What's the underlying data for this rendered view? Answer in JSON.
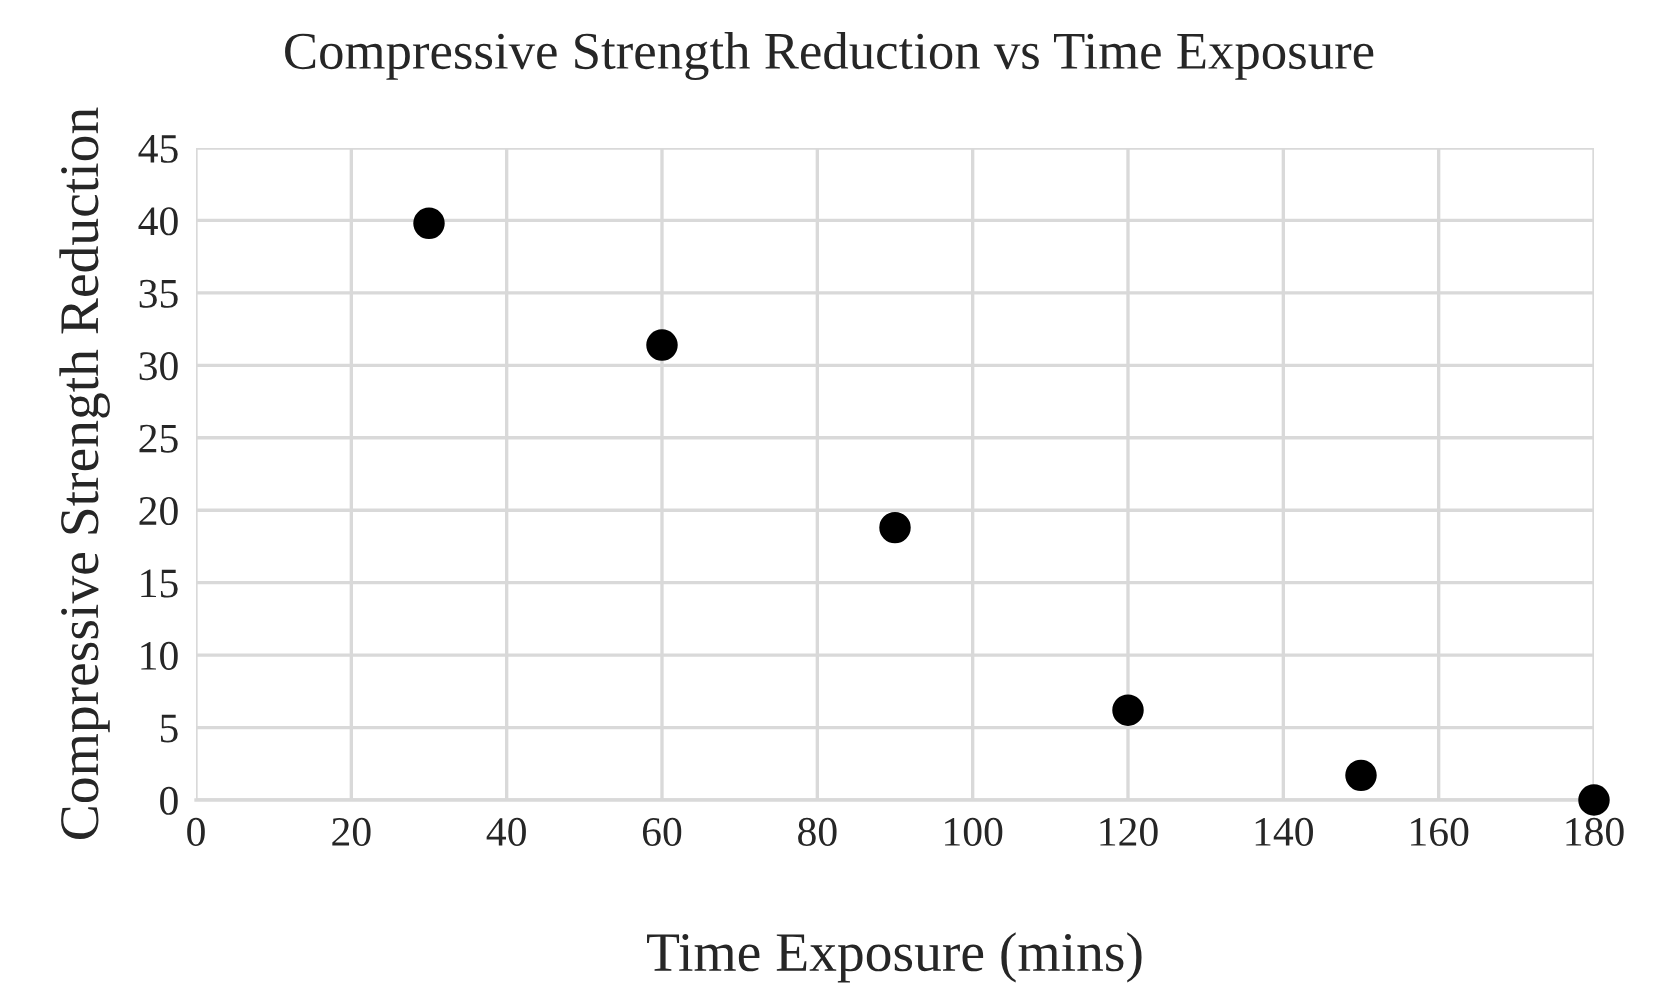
{
  "chart_data": {
    "type": "scatter",
    "title": "Compressive Strength Reduction vs Time Exposure",
    "xlabel": "Time Exposure (mins)",
    "ylabel": "Compressive Strength Reduction",
    "x": [
      30,
      60,
      90,
      120,
      150,
      180
    ],
    "series": [
      {
        "color": "#000000",
        "values": [
          39.8,
          31.4,
          18.8,
          6.2,
          1.7,
          0
        ]
      }
    ],
    "xlim": [
      0,
      180
    ],
    "xticks": [
      0,
      20,
      40,
      60,
      80,
      100,
      120,
      140,
      160,
      180
    ],
    "ylim": [
      0,
      45
    ],
    "yticks": [
      0,
      5,
      10,
      15,
      20,
      25,
      30,
      35,
      40,
      45
    ],
    "grid": true,
    "marker": "circle"
  }
}
